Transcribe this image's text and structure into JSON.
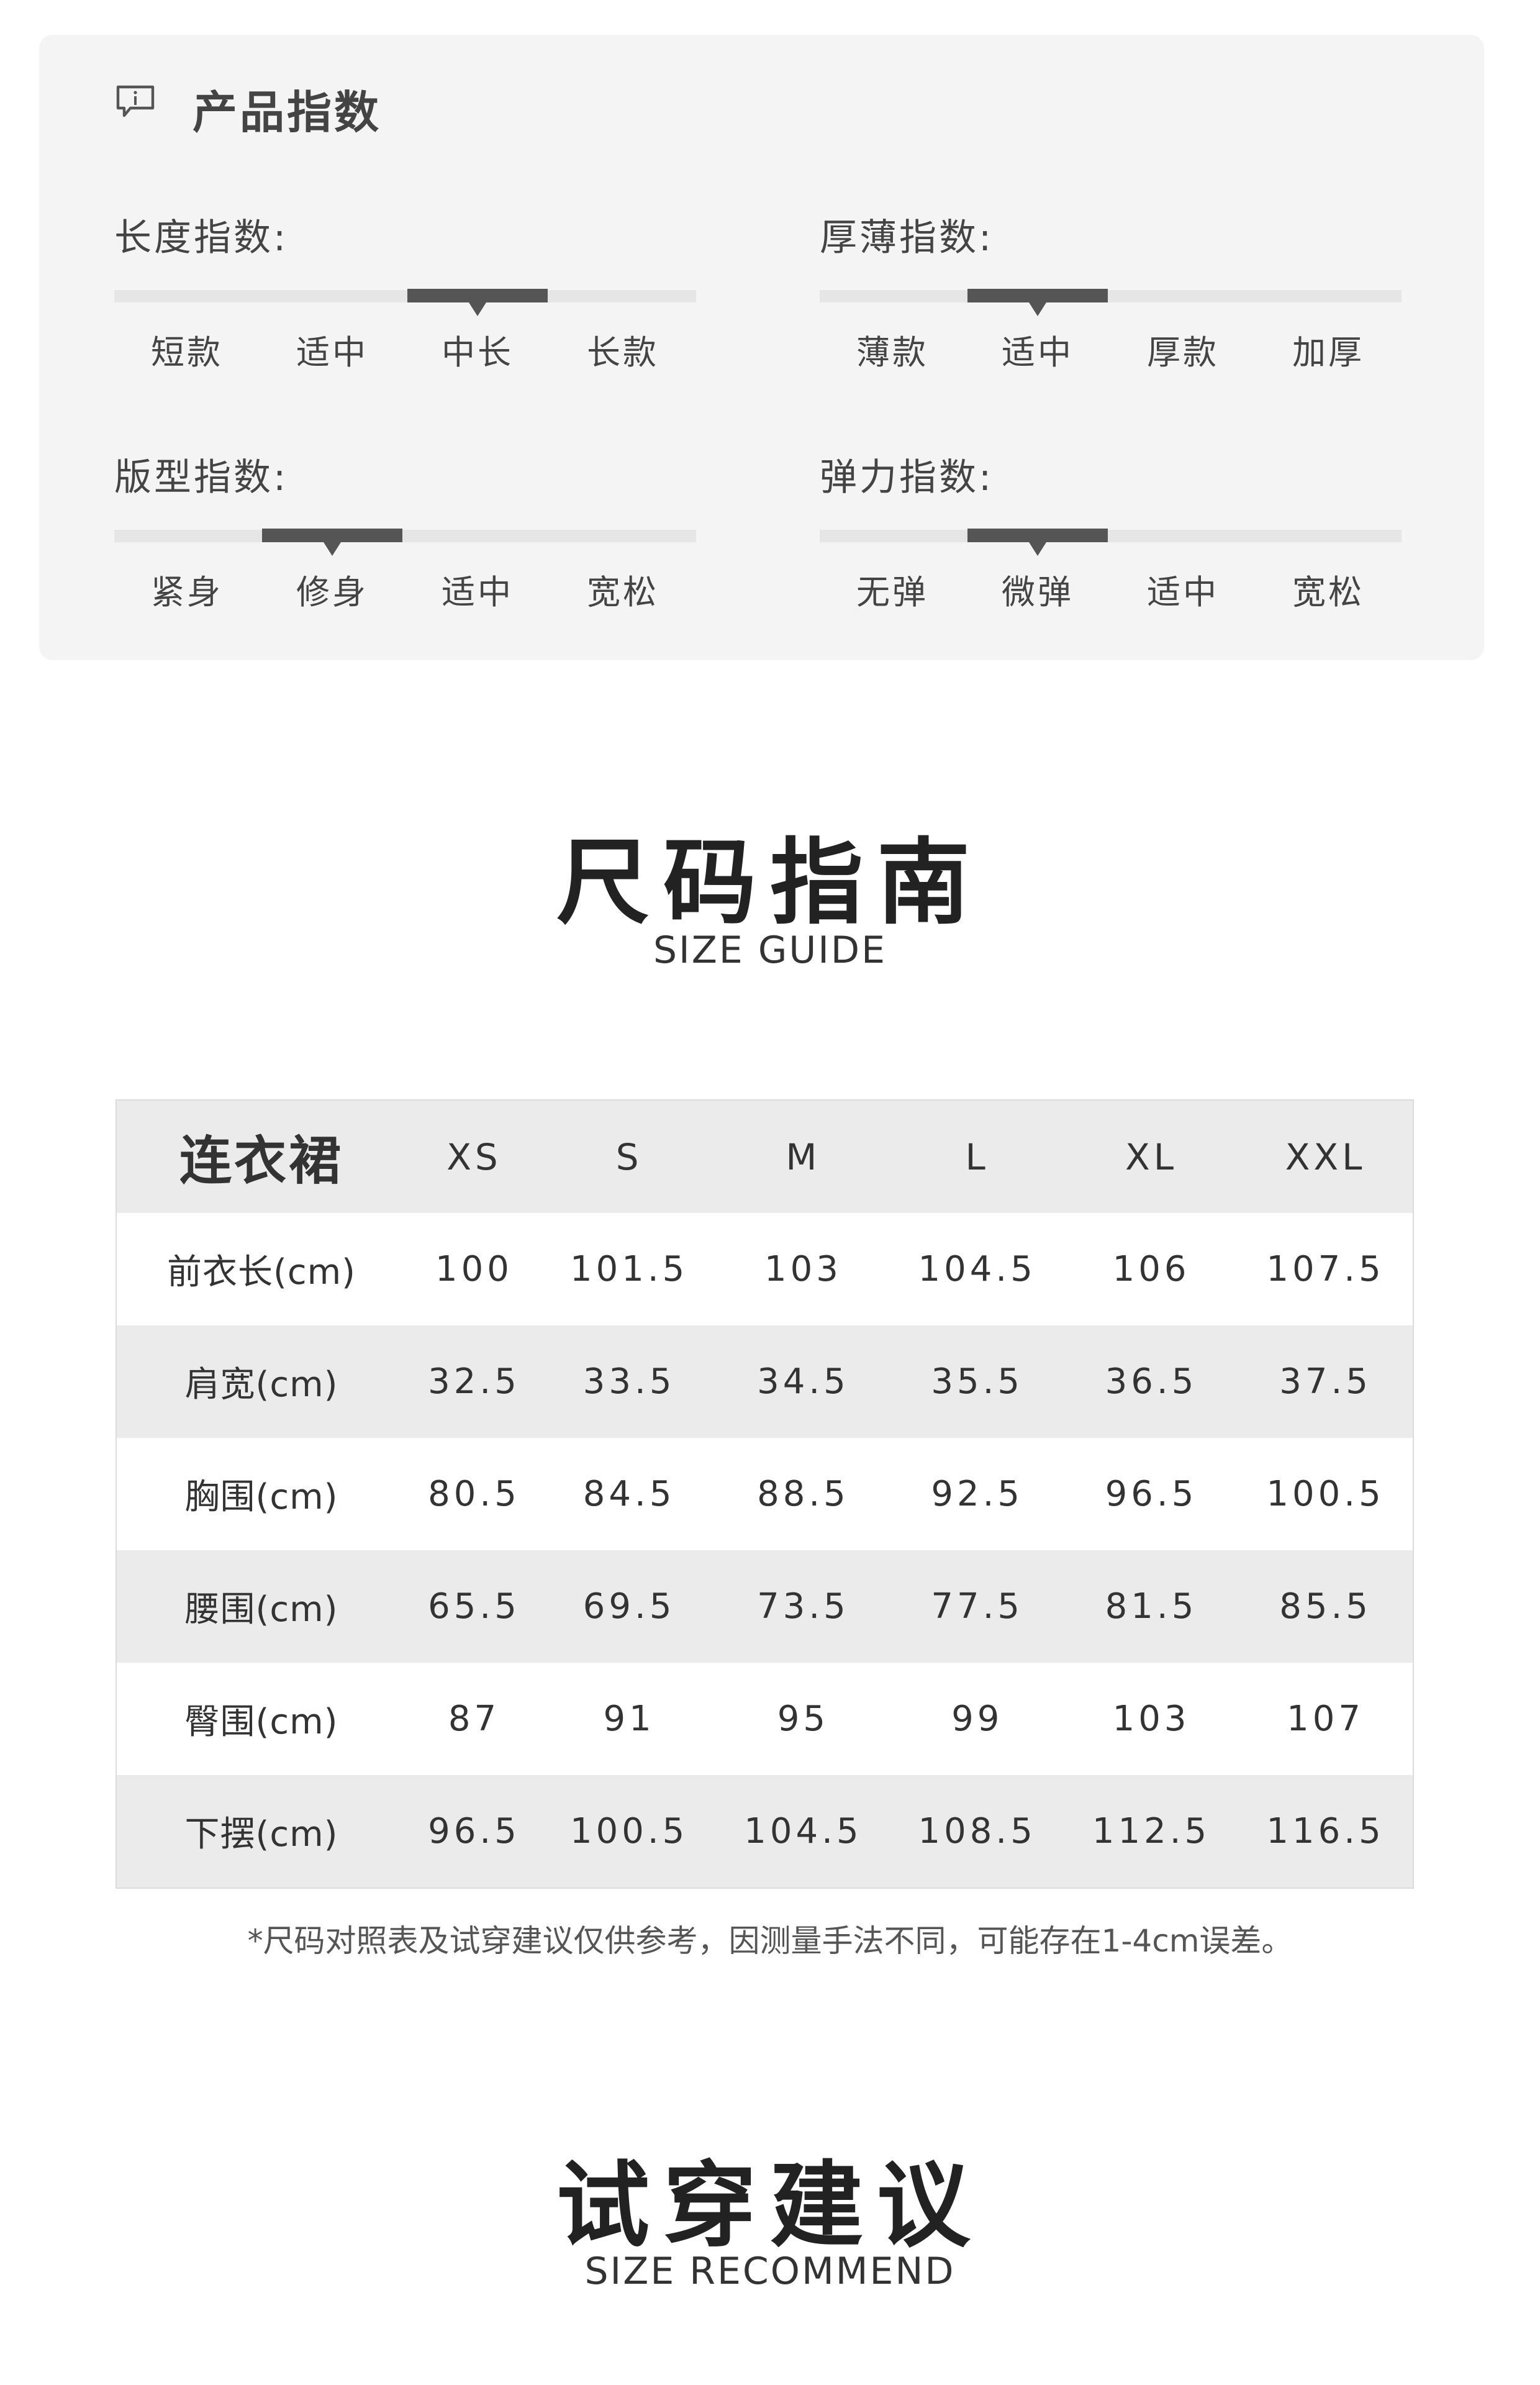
{
  "product_index": {
    "title": "产品指数",
    "icon": "info-chat-icon",
    "indices": [
      {
        "label": "长度指数:",
        "options": [
          "短款",
          "适中",
          "中长",
          "长款"
        ],
        "selected_index": 2
      },
      {
        "label": "厚薄指数:",
        "options": [
          "薄款",
          "适中",
          "厚款",
          "加厚"
        ],
        "selected_index": 1
      },
      {
        "label": "版型指数:",
        "options": [
          "紧身",
          "修身",
          "适中",
          "宽松"
        ],
        "selected_index": 1
      },
      {
        "label": "弹力指数:",
        "options": [
          "无弹",
          "微弹",
          "适中",
          "宽松"
        ],
        "selected_index": 1
      }
    ]
  },
  "size_guide": {
    "title": "尺码指南",
    "subtitle": "SIZE GUIDE",
    "table": {
      "corner": "连衣裙",
      "sizes": [
        "XS",
        "S",
        "M",
        "L",
        "XL",
        "XXL"
      ],
      "rows": [
        {
          "label": "前衣长(cm)",
          "values": [
            "100",
            "101.5",
            "103",
            "104.5",
            "106",
            "107.5"
          ]
        },
        {
          "label": "肩宽(cm)",
          "values": [
            "32.5",
            "33.5",
            "34.5",
            "35.5",
            "36.5",
            "37.5"
          ]
        },
        {
          "label": "胸围(cm)",
          "values": [
            "80.5",
            "84.5",
            "88.5",
            "92.5",
            "96.5",
            "100.5"
          ]
        },
        {
          "label": "腰围(cm)",
          "values": [
            "65.5",
            "69.5",
            "73.5",
            "77.5",
            "81.5",
            "85.5"
          ]
        },
        {
          "label": "臀围(cm)",
          "values": [
            "87",
            "91",
            "95",
            "99",
            "103",
            "107"
          ]
        },
        {
          "label": "下摆(cm)",
          "values": [
            "96.5",
            "100.5",
            "104.5",
            "108.5",
            "112.5",
            "116.5"
          ]
        }
      ]
    },
    "note": "*尺码对照表及试穿建议仅供参考，因测量手法不同，可能存在1-4cm误差。"
  },
  "size_recommend": {
    "title": "试穿建议",
    "subtitle": "SIZE RECOMMEND"
  }
}
